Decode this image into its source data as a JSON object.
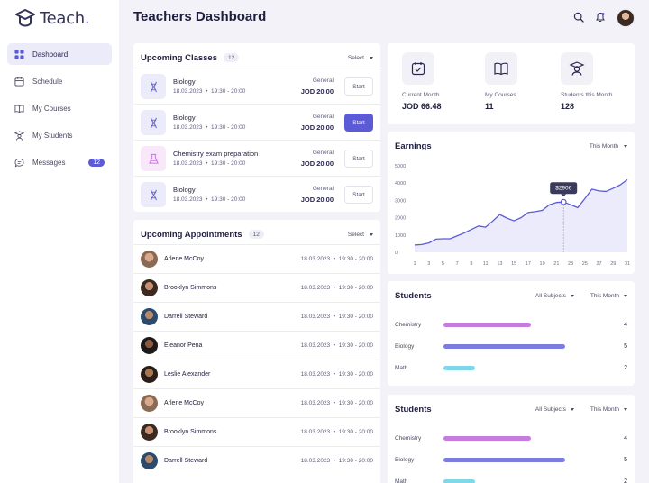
{
  "app": {
    "logo_text": "Teach",
    "logo_dot": "."
  },
  "sidebar": {
    "items": [
      {
        "label": "Dashboard",
        "icon": "grid-icon",
        "active": true
      },
      {
        "label": "Schedule",
        "icon": "calendar-icon"
      },
      {
        "label": "My Courses",
        "icon": "book-icon"
      },
      {
        "label": "My Students",
        "icon": "student-icon"
      },
      {
        "label": "Messages",
        "icon": "chat-icon",
        "badge": "12"
      }
    ]
  },
  "header": {
    "title": "Teachers Dashboard"
  },
  "classes": {
    "title": "Upcoming Classes",
    "count": "12",
    "select": "Select",
    "rows": [
      {
        "name": "Biology",
        "date": "18.03.2023",
        "time": "19:30 - 20:00",
        "type": "General",
        "price": "JOD 20.00",
        "button": "Start",
        "icon": "dna-icon",
        "primary": false
      },
      {
        "name": "Biology",
        "date": "18.03.2023",
        "time": "19:30 - 20:00",
        "type": "General",
        "price": "JOD 20.00",
        "button": "Start",
        "icon": "dna-icon",
        "primary": true
      },
      {
        "name": "Chemistry exam preparation",
        "date": "18.03.2023",
        "time": "19:30 - 20:00",
        "type": "General",
        "price": "JOD 20.00",
        "button": "Start",
        "icon": "flask-icon",
        "primary": false
      },
      {
        "name": "Biology",
        "date": "18.03.2023",
        "time": "19:30 - 20:00",
        "type": "General",
        "price": "JOD 20.00",
        "button": "Start",
        "icon": "dna-icon",
        "primary": false
      }
    ]
  },
  "appointments": {
    "title": "Upcoming Appointments",
    "count": "12",
    "select": "Select",
    "rows": [
      {
        "name": "Arlene McCoy",
        "date": "18.03.2023",
        "time": "19:30 - 20:00"
      },
      {
        "name": "Brooklyn Simmons",
        "date": "18.03.2023",
        "time": "19:30 - 20:00"
      },
      {
        "name": "Darrell Steward",
        "date": "18.03.2023",
        "time": "19:30 - 20:00"
      },
      {
        "name": "Eleanor Pena",
        "date": "18.03.2023",
        "time": "19:30 - 20:00"
      },
      {
        "name": "Leslie Alexander",
        "date": "18.03.2023",
        "time": "19:30 - 20:00"
      },
      {
        "name": "Arlene McCoy",
        "date": "18.03.2023",
        "time": "19:30 - 20:00"
      },
      {
        "name": "Brooklyn Simmons",
        "date": "18.03.2023",
        "time": "19:30 - 20:00"
      },
      {
        "name": "Darrell Steward",
        "date": "18.03.2023",
        "time": "19:30 - 20:00"
      }
    ]
  },
  "stats": [
    {
      "label": "Current Month",
      "value": "JOD 66.48",
      "icon": "calendar-check-icon"
    },
    {
      "label": "My Courses",
      "value": "11",
      "icon": "book-icon"
    },
    {
      "label": "Students this Month",
      "value": "128",
      "icon": "graduate-icon"
    }
  ],
  "earnings": {
    "title": "Earnings",
    "period": "This Month",
    "tooltip": "$2906"
  },
  "chart_data": {
    "type": "area",
    "title": "Earnings",
    "x": [
      1,
      2,
      3,
      4,
      5,
      6,
      7,
      8,
      9,
      10,
      11,
      12,
      13,
      14,
      15,
      16,
      17,
      18,
      19,
      20,
      21,
      22,
      23,
      24,
      25,
      26,
      27,
      28,
      29,
      30,
      31
    ],
    "y": [
      420,
      450,
      540,
      760,
      780,
      780,
      950,
      1120,
      1320,
      1520,
      1450,
      1800,
      2180,
      1980,
      1820,
      2000,
      2300,
      2350,
      2420,
      2750,
      2880,
      2906,
      2750,
      2580,
      3100,
      3650,
      3550,
      3520,
      3700,
      3900,
      4200
    ],
    "x_tick_labels": [
      "1",
      "3",
      "5",
      "7",
      "9",
      "11",
      "13",
      "15",
      "17",
      "19",
      "21",
      "23",
      "25",
      "27",
      "29",
      "31"
    ],
    "ylim": [
      0,
      5000
    ],
    "y_ticks": [
      "0",
      "1000",
      "2000",
      "3000",
      "4000",
      "5000"
    ],
    "highlight_x": 22,
    "highlight_label": "$2906",
    "line_color": "#5b5bd6",
    "fill_color": "#ebebfb",
    "grid": false
  },
  "students_a": {
    "title": "Students",
    "filter": "All Subjects",
    "period": "This Month",
    "rows": [
      {
        "label": "Chemistry",
        "value": "4",
        "fraction": 0.71,
        "color": "#c77be0"
      },
      {
        "label": "Biology",
        "value": "5",
        "fraction": 0.99,
        "color": "#7c7ce0"
      },
      {
        "label": "Math",
        "value": "2",
        "fraction": 0.26,
        "color": "#7fd8ea"
      }
    ]
  },
  "students_b": {
    "title": "Students",
    "filter": "All Subjects",
    "period": "This Month",
    "rows": [
      {
        "label": "Chemistry",
        "value": "4",
        "fraction": 0.71,
        "color": "#c77be0"
      },
      {
        "label": "Biology",
        "value": "5",
        "fraction": 0.99,
        "color": "#7c7ce0"
      },
      {
        "label": "Math",
        "value": "2",
        "fraction": 0.26,
        "color": "#7fd8ea"
      }
    ]
  }
}
